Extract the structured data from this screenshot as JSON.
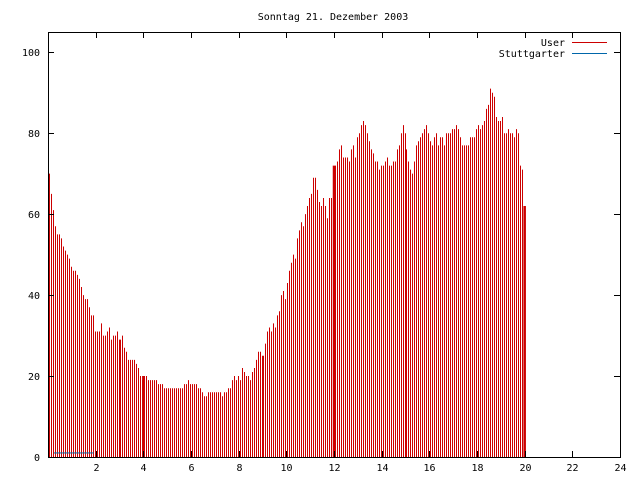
{
  "chart_data": {
    "type": "bar",
    "title": "Sonntag 21. Dezember 2003",
    "xlabel": "",
    "ylabel": "",
    "xlim": [
      0,
      24
    ],
    "ylim": [
      0,
      105
    ],
    "xticks": [
      2,
      4,
      6,
      8,
      10,
      12,
      14,
      16,
      18,
      20,
      22,
      24
    ],
    "yticks": [
      0,
      20,
      40,
      60,
      80,
      100
    ],
    "grid": false,
    "legend_position": "top-right",
    "bins_per_hour": 12,
    "series": [
      {
        "name": "User",
        "color": "#cc0000",
        "values": [
          70,
          65,
          61,
          57,
          55,
          55,
          54,
          52,
          51,
          50,
          49,
          47,
          46,
          46,
          45,
          44,
          42,
          40,
          39,
          39,
          37,
          35,
          35,
          31,
          31,
          31,
          33,
          30,
          30,
          31,
          32,
          29,
          30,
          30,
          31,
          29,
          29,
          30,
          27,
          26,
          24,
          24,
          24,
          24,
          23,
          22,
          20,
          19,
          20,
          20,
          19,
          19,
          19,
          19,
          19,
          18,
          18,
          18,
          17,
          17,
          17,
          17,
          17,
          17,
          17,
          17,
          17,
          17,
          18,
          18,
          19,
          18,
          18,
          18,
          18,
          17,
          17,
          16,
          15,
          15,
          16,
          16,
          16,
          16,
          16,
          16,
          16,
          15,
          16,
          16,
          17,
          17,
          19,
          20,
          19,
          20,
          19,
          22,
          21,
          20,
          20,
          19,
          21,
          22,
          24,
          26,
          26,
          25,
          25,
          28,
          31,
          32,
          31,
          33,
          32,
          35,
          36,
          40,
          41,
          39,
          43,
          46,
          48,
          50,
          49,
          54,
          56,
          58,
          57,
          60,
          62,
          64,
          65,
          69,
          69,
          66,
          63,
          62,
          64,
          62,
          59,
          64,
          64,
          66,
          72,
          73,
          76,
          77,
          74,
          74,
          74,
          73,
          76,
          77,
          74,
          79,
          80,
          82,
          83,
          82,
          80,
          78,
          76,
          75,
          73,
          73,
          71,
          72,
          72,
          73,
          74,
          72,
          72,
          73,
          73,
          76,
          77,
          80,
          82,
          80,
          76,
          73,
          71,
          70,
          73,
          77,
          78,
          79,
          80,
          81,
          82,
          80,
          78,
          77,
          79,
          80,
          77,
          79,
          79,
          77,
          80,
          80,
          80,
          81,
          81,
          82,
          81,
          79,
          77,
          77,
          77,
          77,
          79,
          79,
          79,
          81,
          82,
          81,
          82,
          83,
          86,
          87,
          91,
          90,
          89,
          84,
          83,
          83,
          84,
          80,
          80,
          81,
          80,
          80,
          79,
          81,
          80,
          72,
          71,
          62
        ]
      },
      {
        "name": "Stuttgarter",
        "color": "#0066aa",
        "values": [
          0,
          0,
          0,
          1,
          1,
          1,
          1,
          1,
          1,
          1,
          1,
          1,
          1,
          1,
          1,
          1,
          1,
          1,
          1,
          1,
          1,
          1,
          1,
          0,
          0,
          0,
          0,
          0,
          0,
          0,
          0,
          0,
          0,
          0,
          0,
          0,
          0,
          0,
          0,
          0,
          0,
          0,
          0,
          0,
          0,
          0,
          0,
          0,
          0,
          0,
          0,
          0,
          0,
          0,
          0,
          0,
          0,
          0,
          0,
          0,
          0,
          0,
          0,
          0,
          0,
          0,
          0,
          0,
          0,
          0,
          0,
          0,
          0,
          0,
          0,
          0,
          0,
          0,
          0,
          0,
          0,
          0,
          0,
          0,
          0,
          0,
          0,
          0,
          0,
          0,
          0,
          0,
          0,
          0,
          0,
          0,
          0,
          0,
          0,
          0,
          0,
          0,
          0,
          0,
          0,
          0,
          0,
          0,
          0,
          0,
          0,
          0,
          0,
          0,
          0,
          0,
          0,
          0,
          0,
          0,
          0,
          0,
          0,
          0,
          0,
          0,
          0,
          0,
          0,
          0,
          0,
          0,
          0,
          0,
          0,
          0,
          0,
          0,
          0,
          0,
          0,
          0,
          0,
          0,
          0,
          0,
          0,
          0,
          0,
          0,
          0,
          0,
          0,
          0,
          0,
          0,
          0,
          0,
          0,
          0,
          0,
          0,
          0,
          0,
          0,
          0,
          0,
          0,
          0,
          0,
          0,
          0,
          0,
          0,
          0,
          0,
          0,
          0,
          0,
          0,
          0,
          0,
          0,
          0,
          0,
          0,
          0,
          0,
          0,
          0,
          0,
          0,
          0,
          0,
          0,
          0,
          0,
          0,
          0,
          0,
          0,
          0,
          0,
          0,
          0,
          0,
          0,
          0,
          0,
          0,
          0,
          0,
          0,
          0,
          0,
          0,
          0,
          0,
          0,
          0,
          0,
          0,
          0,
          0,
          0,
          0,
          0,
          0,
          0,
          0,
          0,
          0,
          0,
          0,
          0,
          0,
          0,
          0,
          0,
          0
        ]
      }
    ],
    "highlight_hours": [
      4,
      12,
      20
    ]
  }
}
